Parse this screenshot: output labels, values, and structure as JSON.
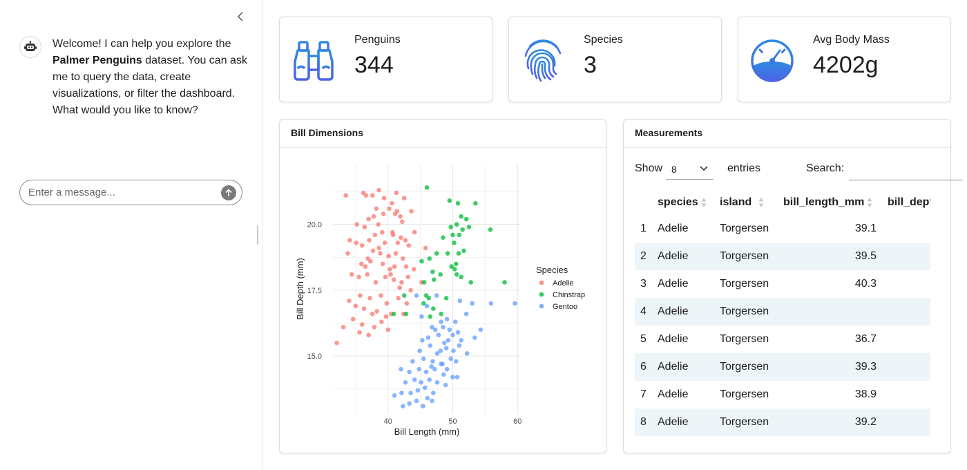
{
  "sidebar": {
    "message_intro": "Welcome! I can help you explore the ",
    "message_bold": "Palmer Penguins",
    "message_rest": " dataset. You can ask me to query the data, create visualizations, or filter the dashboard. What would you like to know?",
    "input_placeholder": "Enter a message..."
  },
  "value_boxes": [
    {
      "title": "Penguins",
      "value": "344",
      "icon": "binoculars-icon"
    },
    {
      "title": "Species",
      "value": "3",
      "icon": "fingerprint-icon"
    },
    {
      "title": "Avg Body Mass",
      "value": "4202g",
      "icon": "speedometer-icon"
    }
  ],
  "colors": {
    "accent": "#3b7be0",
    "adelie": "#f8766d",
    "chinstrap": "#00ba38",
    "gentoo": "#619cff"
  },
  "scatter_card": {
    "title": "Bill Dimensions"
  },
  "chart_data": {
    "type": "scatter",
    "title": "",
    "xlabel": "Bill Length (mm)",
    "ylabel": "Bill Depth (mm)",
    "xlim": [
      31.5,
      60.5
    ],
    "ylim": [
      12.8,
      22.3
    ],
    "xticks": [
      40,
      50,
      60
    ],
    "yticks": [
      15.0,
      17.5,
      20.0
    ],
    "ytick_labels": [
      "15.0",
      "17.5",
      "20.0"
    ],
    "grid": true,
    "legend": {
      "title": "Species",
      "position": "right"
    },
    "series": [
      {
        "name": "Adelie",
        "points": [
          [
            33.5,
            21.1
          ],
          [
            36.2,
            21.2
          ],
          [
            36.6,
            21.1
          ],
          [
            37.6,
            21.1
          ],
          [
            38.6,
            21.3
          ],
          [
            39.4,
            21.0
          ],
          [
            41.3,
            21.2
          ],
          [
            42.5,
            21.0
          ],
          [
            38.2,
            20.6
          ],
          [
            37.0,
            20.2
          ],
          [
            37.8,
            20.3
          ],
          [
            39.3,
            20.4
          ],
          [
            40.2,
            20.6
          ],
          [
            41.1,
            20.4
          ],
          [
            41.4,
            20.5
          ],
          [
            40.6,
            20.8
          ],
          [
            41.9,
            20.3
          ],
          [
            43.6,
            20.5
          ],
          [
            42.2,
            20.1
          ],
          [
            35.2,
            20.0
          ],
          [
            36.4,
            19.9
          ],
          [
            38.5,
            20.0
          ],
          [
            39.1,
            19.7
          ],
          [
            40.7,
            19.7
          ],
          [
            42.0,
            19.5
          ],
          [
            34.1,
            19.4
          ],
          [
            35.1,
            19.3
          ],
          [
            36.0,
            19.2
          ],
          [
            37.1,
            19.4
          ],
          [
            38.0,
            19.6
          ],
          [
            39.5,
            19.3
          ],
          [
            40.8,
            19.6
          ],
          [
            41.5,
            19.3
          ],
          [
            42.7,
            19.4
          ],
          [
            44.1,
            19.7
          ],
          [
            45.8,
            19.1
          ],
          [
            33.8,
            18.9
          ],
          [
            36.9,
            18.7
          ],
          [
            37.7,
            19.0
          ],
          [
            38.8,
            18.9
          ],
          [
            40.1,
            18.8
          ],
          [
            41.2,
            18.9
          ],
          [
            42.3,
            18.7
          ],
          [
            43.2,
            19.2
          ],
          [
            35.9,
            18.5
          ],
          [
            36.5,
            18.4
          ],
          [
            37.3,
            18.6
          ],
          [
            39.2,
            18.5
          ],
          [
            40.3,
            18.3
          ],
          [
            41.0,
            18.4
          ],
          [
            42.8,
            18.4
          ],
          [
            44.0,
            18.3
          ],
          [
            34.4,
            18.1
          ],
          [
            35.5,
            18.0
          ],
          [
            36.8,
            18.1
          ],
          [
            38.1,
            17.8
          ],
          [
            39.6,
            18.0
          ],
          [
            40.9,
            17.9
          ],
          [
            42.1,
            17.8
          ],
          [
            43.1,
            18.0
          ],
          [
            45.2,
            17.8
          ],
          [
            34.0,
            17.1
          ],
          [
            35.7,
            17.3
          ],
          [
            37.2,
            17.2
          ],
          [
            38.9,
            17.3
          ],
          [
            39.8,
            17.0
          ],
          [
            41.6,
            17.2
          ],
          [
            42.9,
            17.0
          ],
          [
            43.5,
            17.5
          ],
          [
            35.0,
            16.9
          ],
          [
            36.3,
            16.8
          ],
          [
            37.6,
            16.6
          ],
          [
            38.3,
            16.7
          ],
          [
            39.7,
            16.5
          ],
          [
            40.5,
            16.6
          ],
          [
            42.4,
            16.6
          ],
          [
            36.0,
            16.2
          ],
          [
            37.9,
            16.1
          ],
          [
            39.0,
            16.3
          ],
          [
            40.0,
            16.0
          ],
          [
            33.1,
            16.1
          ],
          [
            35.6,
            15.9
          ],
          [
            34.6,
            16.4
          ],
          [
            37.0,
            15.8
          ],
          [
            32.1,
            15.5
          ],
          [
            41.8,
            17.6
          ],
          [
            38.6,
            19.1
          ],
          [
            40.4,
            18.1
          ]
        ]
      },
      {
        "name": "Chinstrap",
        "points": [
          [
            46.0,
            21.4
          ],
          [
            49.5,
            20.9
          ],
          [
            50.8,
            20.8
          ],
          [
            53.5,
            20.8
          ],
          [
            52.1,
            20.2
          ],
          [
            51.3,
            20.3
          ],
          [
            50.6,
            20.0
          ],
          [
            49.7,
            19.9
          ],
          [
            51.5,
            19.8
          ],
          [
            50.0,
            19.6
          ],
          [
            52.5,
            19.9
          ],
          [
            55.8,
            19.8
          ],
          [
            48.5,
            19.5
          ],
          [
            50.2,
            19.3
          ],
          [
            51.0,
            19.6
          ],
          [
            49.2,
            18.9
          ],
          [
            46.4,
            18.7
          ],
          [
            47.5,
            18.9
          ],
          [
            50.9,
            18.9
          ],
          [
            51.7,
            19.0
          ],
          [
            45.2,
            18.6
          ],
          [
            49.8,
            18.4
          ],
          [
            50.5,
            18.5
          ],
          [
            46.9,
            18.2
          ],
          [
            47.1,
            17.9
          ],
          [
            45.6,
            17.8
          ],
          [
            48.1,
            18.1
          ],
          [
            50.3,
            18.3
          ],
          [
            50.6,
            18.1
          ],
          [
            51.3,
            18.0
          ],
          [
            45.9,
            17.3
          ],
          [
            46.3,
            17.2
          ],
          [
            49.0,
            17.2
          ],
          [
            52.8,
            17.8
          ],
          [
            42.5,
            17.3
          ],
          [
            45.5,
            17.0
          ],
          [
            47.0,
            16.8
          ],
          [
            48.2,
            16.6
          ],
          [
            58.0,
            17.8
          ],
          [
            40.9,
            16.6
          ],
          [
            42.8,
            16.6
          ],
          [
            46.5,
            16.5
          ]
        ]
      },
      {
        "name": "Gentoo",
        "points": [
          [
            44.4,
            17.3
          ],
          [
            47.5,
            17.3
          ],
          [
            51.1,
            17.1
          ],
          [
            46.0,
            16.9
          ],
          [
            53.0,
            17.0
          ],
          [
            55.9,
            17.0
          ],
          [
            59.6,
            17.0
          ],
          [
            45.2,
            16.5
          ],
          [
            48.2,
            16.3
          ],
          [
            49.1,
            16.4
          ],
          [
            50.4,
            16.3
          ],
          [
            52.1,
            16.6
          ],
          [
            46.8,
            16.1
          ],
          [
            47.3,
            16.0
          ],
          [
            48.5,
            16.1
          ],
          [
            49.5,
            16.0
          ],
          [
            50.0,
            15.8
          ],
          [
            50.8,
            15.9
          ],
          [
            54.3,
            16.0
          ],
          [
            45.3,
            15.6
          ],
          [
            46.2,
            15.7
          ],
          [
            47.8,
            15.8
          ],
          [
            48.7,
            15.5
          ],
          [
            49.3,
            15.6
          ],
          [
            51.3,
            15.6
          ],
          [
            53.4,
            15.7
          ],
          [
            44.9,
            15.2
          ],
          [
            46.5,
            15.4
          ],
          [
            47.6,
            15.1
          ],
          [
            48.1,
            15.2
          ],
          [
            49.0,
            15.3
          ],
          [
            50.1,
            15.2
          ],
          [
            51.0,
            15.4
          ],
          [
            52.2,
            15.1
          ],
          [
            43.8,
            14.8
          ],
          [
            45.5,
            14.9
          ],
          [
            46.9,
            14.8
          ],
          [
            48.4,
            14.7
          ],
          [
            49.7,
            14.9
          ],
          [
            50.5,
            14.8
          ],
          [
            42.0,
            14.5
          ],
          [
            43.3,
            14.4
          ],
          [
            44.8,
            14.5
          ],
          [
            45.9,
            14.4
          ],
          [
            47.2,
            14.5
          ],
          [
            48.6,
            14.3
          ],
          [
            50.7,
            14.2
          ],
          [
            42.7,
            14.0
          ],
          [
            44.1,
            14.1
          ],
          [
            45.1,
            14.0
          ],
          [
            46.4,
            14.1
          ],
          [
            47.6,
            14.0
          ],
          [
            48.9,
            13.9
          ],
          [
            43.5,
            13.6
          ],
          [
            44.6,
            13.7
          ],
          [
            45.7,
            13.8
          ],
          [
            47.0,
            13.6
          ],
          [
            41.0,
            13.5
          ],
          [
            42.1,
            13.6
          ],
          [
            46.1,
            13.4
          ],
          [
            43.3,
            13.2
          ],
          [
            44.4,
            13.3
          ],
          [
            45.4,
            13.1
          ],
          [
            46.8,
            13.3
          ],
          [
            42.3,
            13.1
          ],
          [
            49.1,
            14.5
          ],
          [
            50.0,
            14.2
          ],
          [
            48.2,
            14.7
          ],
          [
            46.7,
            14.6
          ]
        ]
      }
    ]
  },
  "table_card": {
    "title": "Measurements",
    "show_label": "Show",
    "length_value": "8",
    "entries_label": "entries",
    "search_label": "Search:",
    "columns": [
      "species",
      "island",
      "bill_length_mm",
      "bill_dept"
    ],
    "rows": [
      {
        "idx": "1",
        "species": "Adelie",
        "island": "Torgersen",
        "bill_length_mm": "39.1"
      },
      {
        "idx": "2",
        "species": "Adelie",
        "island": "Torgersen",
        "bill_length_mm": "39.5"
      },
      {
        "idx": "3",
        "species": "Adelie",
        "island": "Torgersen",
        "bill_length_mm": "40.3"
      },
      {
        "idx": "4",
        "species": "Adelie",
        "island": "Torgersen",
        "bill_length_mm": ""
      },
      {
        "idx": "5",
        "species": "Adelie",
        "island": "Torgersen",
        "bill_length_mm": "36.7"
      },
      {
        "idx": "6",
        "species": "Adelie",
        "island": "Torgersen",
        "bill_length_mm": "39.3"
      },
      {
        "idx": "7",
        "species": "Adelie",
        "island": "Torgersen",
        "bill_length_mm": "38.9"
      },
      {
        "idx": "8",
        "species": "Adelie",
        "island": "Torgersen",
        "bill_length_mm": "39.2"
      }
    ]
  }
}
